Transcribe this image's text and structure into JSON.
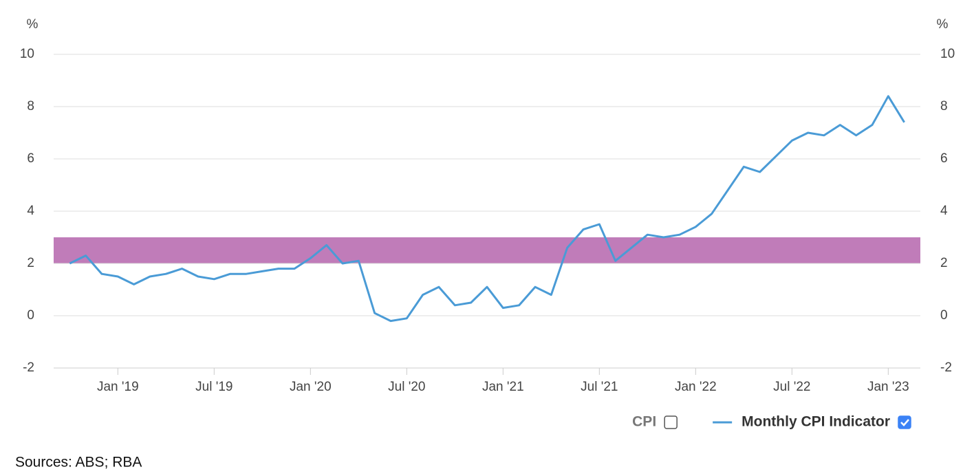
{
  "chart_data": {
    "type": "line",
    "y_unit": "%",
    "y2_unit": "%",
    "x": [
      "2018-10",
      "2018-11",
      "2018-12",
      "2019-01",
      "2019-02",
      "2019-03",
      "2019-04",
      "2019-05",
      "2019-06",
      "2019-07",
      "2019-08",
      "2019-09",
      "2019-10",
      "2019-11",
      "2019-12",
      "2020-01",
      "2020-02",
      "2020-03",
      "2020-04",
      "2020-05",
      "2020-06",
      "2020-07",
      "2020-08",
      "2020-09",
      "2020-10",
      "2020-11",
      "2020-12",
      "2021-01",
      "2021-02",
      "2021-03",
      "2021-04",
      "2021-05",
      "2021-06",
      "2021-07",
      "2021-08",
      "2021-09",
      "2021-10",
      "2021-11",
      "2021-12",
      "2022-01",
      "2022-02",
      "2022-03",
      "2022-04",
      "2022-05",
      "2022-06",
      "2022-07",
      "2022-08",
      "2022-09",
      "2022-10",
      "2022-11",
      "2022-12",
      "2023-01",
      "2023-02"
    ],
    "series": [
      {
        "name": "CPI",
        "visible": false
      },
      {
        "name": "Monthly CPI Indicator",
        "color": "#4a9bd6",
        "visible": true,
        "values": [
          2.0,
          2.3,
          1.6,
          1.5,
          1.2,
          1.5,
          1.6,
          1.8,
          1.5,
          1.4,
          1.6,
          1.6,
          1.7,
          1.8,
          1.8,
          2.2,
          2.7,
          2.0,
          2.1,
          0.1,
          -0.2,
          -0.1,
          0.8,
          1.1,
          0.4,
          0.5,
          1.1,
          0.3,
          0.4,
          1.1,
          0.8,
          2.6,
          3.3,
          3.5,
          2.1,
          2.6,
          3.1,
          3.0,
          3.1,
          3.4,
          3.9,
          4.8,
          5.7,
          5.5,
          6.1,
          6.7,
          7.0,
          6.9,
          7.3,
          6.9,
          7.3,
          8.4,
          7.4
        ]
      }
    ],
    "bands": [
      {
        "from": 2,
        "to": 3,
        "color": "#c07cb9"
      }
    ],
    "xlim": [
      "2018-09",
      "2023-03"
    ],
    "xticks": [
      {
        "value": "2019-01",
        "label": "Jan '19"
      },
      {
        "value": "2019-07",
        "label": "Jul '19"
      },
      {
        "value": "2020-01",
        "label": "Jan '20"
      },
      {
        "value": "2020-07",
        "label": "Jul '20"
      },
      {
        "value": "2021-01",
        "label": "Jan '21"
      },
      {
        "value": "2021-07",
        "label": "Jul '21"
      },
      {
        "value": "2022-01",
        "label": "Jan '22"
      },
      {
        "value": "2022-07",
        "label": "Jul '22"
      },
      {
        "value": "2023-01",
        "label": "Jan '23"
      }
    ],
    "ylim": [
      -2,
      10
    ],
    "yticks": [
      -2,
      0,
      2,
      4,
      6,
      8,
      10
    ],
    "y2lim": [
      -2,
      10
    ],
    "y2ticks": [
      -2,
      0,
      2,
      4,
      6,
      8,
      10
    ],
    "grid": true,
    "legend": "bottom-right",
    "source": "Sources: ABS; RBA"
  }
}
